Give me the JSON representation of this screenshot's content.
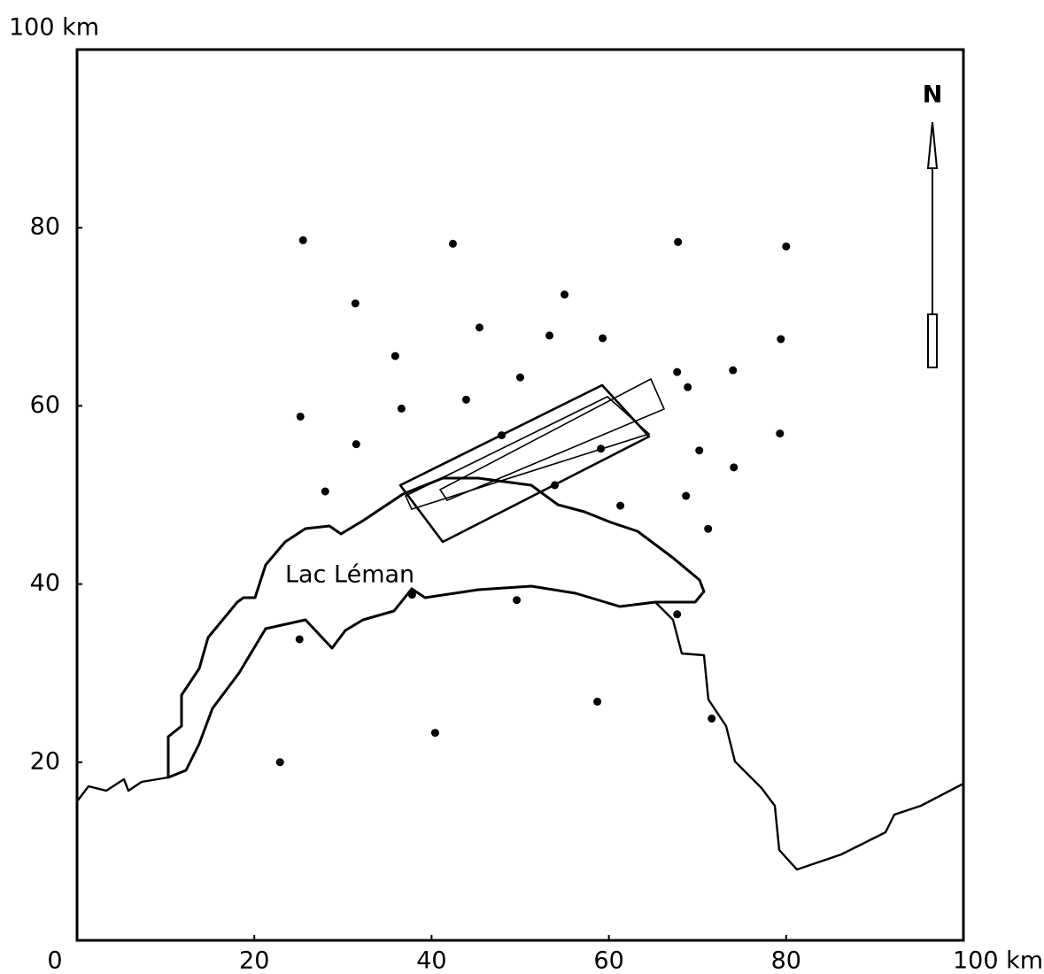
{
  "chart_data": {
    "type": "scatter",
    "x": [
      25.5,
      42.4,
      67.8,
      80.0,
      31.4,
      55.0,
      45.4,
      53.3,
      59.3,
      79.4,
      35.9,
      50.0,
      67.7,
      74.0,
      68.9,
      43.9,
      36.6,
      25.2,
      31.5,
      59.1,
      70.2,
      74.1,
      79.3,
      28.0,
      53.9,
      61.3,
      68.7,
      71.2,
      49.6,
      37.8,
      67.7,
      25.1,
      58.7,
      40.4,
      71.6,
      22.9,
      47.9
    ],
    "values": [
      78.6,
      78.2,
      78.4,
      77.9,
      71.5,
      72.5,
      68.8,
      67.9,
      67.6,
      67.5,
      65.6,
      63.2,
      63.8,
      64.0,
      62.1,
      60.7,
      59.7,
      58.8,
      55.7,
      55.2,
      55.0,
      53.1,
      56.9,
      50.4,
      51.1,
      48.8,
      49.9,
      46.2,
      38.2,
      38.8,
      36.6,
      33.8,
      26.8,
      23.3,
      24.9,
      20.0,
      56.7
    ],
    "color": "#000000",
    "xlim": [
      0,
      100
    ],
    "ylim": [
      0,
      100
    ],
    "xticks": [
      0,
      20,
      40,
      60,
      80,
      {
        "value": 100,
        "label": "100 km"
      }
    ],
    "yticks": [
      20,
      40,
      60,
      80,
      {
        "value": 100,
        "label": "100 km"
      }
    ],
    "annotations": [
      "Lac Léman",
      "N"
    ]
  }
}
